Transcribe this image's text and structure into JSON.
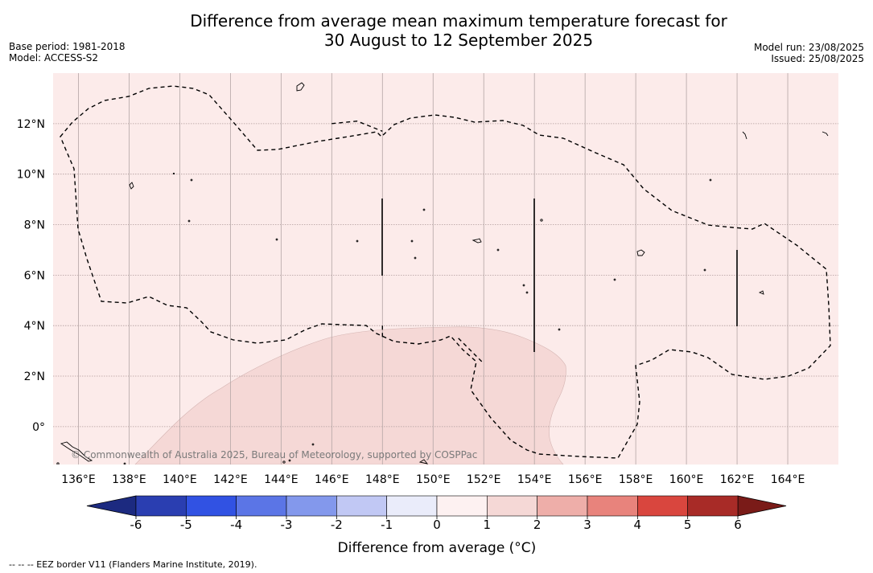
{
  "title_line1": "Difference from average mean maximum temperature forecast for",
  "title_line2": "30 August to 12 September 2025",
  "base_period": "Base period: 1981-2018",
  "model": "Model: ACCESS-S2",
  "model_run": "Model run: 23/08/2025",
  "issued": "Issued: 25/08/2025",
  "map": {
    "lon_range": [
      135.0,
      166.0
    ],
    "lat_range": [
      -1.5,
      14.0
    ],
    "lon_ticks": [
      136,
      138,
      140,
      142,
      144,
      146,
      148,
      150,
      152,
      154,
      156,
      158,
      160,
      162,
      164
    ],
    "lat_ticks": [
      0,
      2,
      4,
      6,
      8,
      10,
      12
    ],
    "lon_labels": [
      "136°E",
      "138°E",
      "140°E",
      "142°E",
      "144°E",
      "146°E",
      "148°E",
      "150°E",
      "152°E",
      "154°E",
      "156°E",
      "158°E",
      "160°E",
      "162°E",
      "164°E"
    ],
    "lat_labels": [
      "0°",
      "2°N",
      "4°N",
      "6°N",
      "8°N",
      "10°N",
      "12°N"
    ],
    "background_category": "0 to 1 °C",
    "background_color": "#fcebea",
    "region_category": "1 to 2 °C",
    "region_color": "#f5d8d6",
    "copyright": "© Commonwealth of Australia 2025, Bureau of Meteorology, supported by COSPPac",
    "eez_lines": [
      [
        [
          146.0,
          12.0
        ],
        [
          147.0,
          12.1
        ],
        [
          148.0,
          11.7
        ]
      ],
      [
        [
          148.0,
          4.0
        ],
        [
          148.0,
          3.5
        ]
      ],
      [
        [
          151.0,
          3.5
        ],
        [
          152.0,
          2.5
        ]
      ]
    ]
  },
  "colorbar": {
    "ticks": [
      "-6",
      "-5",
      "-4",
      "-3",
      "-2",
      "-1",
      "0",
      "1",
      "2",
      "3",
      "4",
      "5",
      "6"
    ],
    "colors": [
      "#2a3eb1",
      "#3152e3",
      "#5b75e6",
      "#8398ec",
      "#c1c8f4",
      "#eaecfa",
      "#fdf1f1",
      "#f5d8d6",
      "#eeaea9",
      "#e8837c",
      "#d9463e",
      "#a82b27"
    ],
    "low_extend_color": "#1c2a80",
    "high_extend_color": "#7a1b18",
    "label": "Difference from average (°C)"
  },
  "footer": "--  --  -- EEZ border V11 (Flanders Marine Institute, 2019)."
}
